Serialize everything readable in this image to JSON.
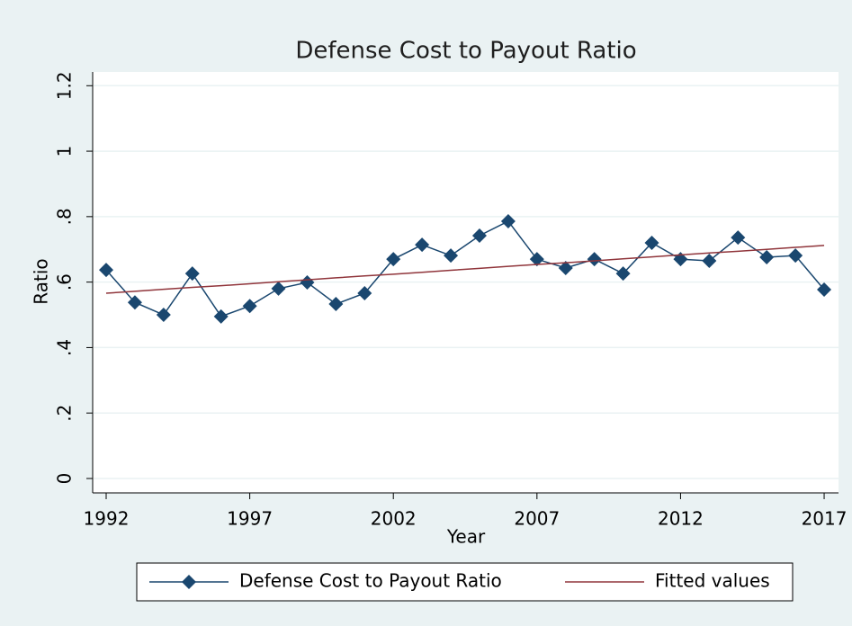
{
  "chart_data": {
    "type": "line",
    "title": "Defense Cost to Payout Ratio",
    "x_label": "Year",
    "y_label": "Ratio",
    "x": [
      1992,
      1993,
      1994,
      1995,
      1996,
      1997,
      1998,
      1999,
      2000,
      2001,
      2002,
      2003,
      2004,
      2005,
      2006,
      2007,
      2008,
      2009,
      2010,
      2011,
      2012,
      2013,
      2014,
      2015,
      2016,
      2017
    ],
    "series": [
      {
        "name": "Defense Cost to Payout Ratio",
        "color": "#1a476f",
        "marker": "diamond",
        "values": [
          0.637,
          0.538,
          0.5,
          0.626,
          0.495,
          0.527,
          0.58,
          0.599,
          0.533,
          0.566,
          0.67,
          0.714,
          0.681,
          0.742,
          0.786,
          0.67,
          0.643,
          0.67,
          0.626,
          0.72,
          0.67,
          0.665,
          0.736,
          0.676,
          0.681,
          0.577
        ]
      },
      {
        "name": "Fitted values",
        "color": "#90353b",
        "values": [
          0.566,
          0.572,
          0.578,
          0.584,
          0.589,
          0.595,
          0.601,
          0.607,
          0.613,
          0.619,
          0.624,
          0.63,
          0.636,
          0.642,
          0.648,
          0.654,
          0.659,
          0.665,
          0.671,
          0.677,
          0.683,
          0.689,
          0.694,
          0.7,
          0.706,
          0.712
        ]
      }
    ],
    "xlim": [
      1991.53,
      2017.5
    ],
    "xticks": [
      1992,
      1997,
      2002,
      2007,
      2012,
      2017
    ],
    "ylim": [
      -0.044,
      1.242
    ],
    "yticks": [
      0,
      {
        "value": 0.2,
        "label": ".2"
      },
      {
        "value": 0.4,
        "label": ".4"
      },
      {
        "value": 0.6,
        "label": ".6"
      },
      {
        "value": 0.8,
        "label": ".8"
      },
      1,
      1.2
    ],
    "grid": true,
    "legend": "bottom"
  }
}
